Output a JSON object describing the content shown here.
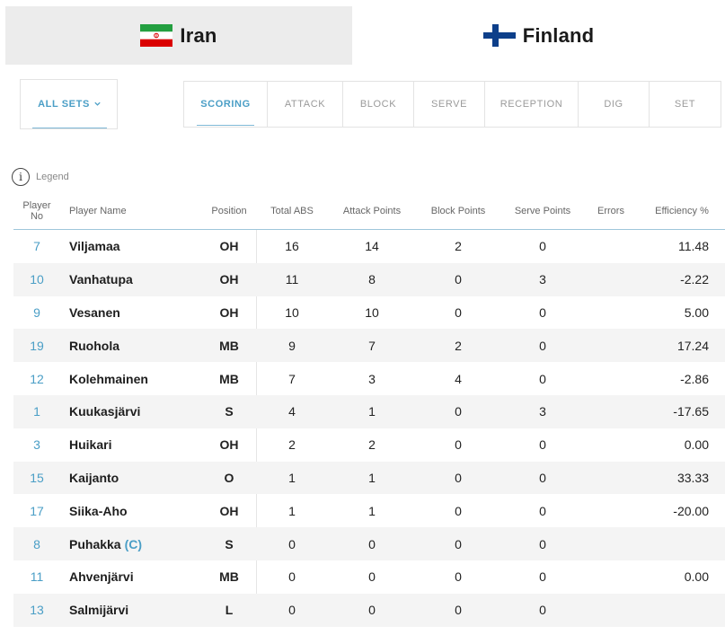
{
  "teams": [
    {
      "name": "Iran",
      "flag_icon": "iran-flag-icon",
      "active": false
    },
    {
      "name": "Finland",
      "flag_icon": "finland-flag-icon",
      "active": true
    }
  ],
  "set_selector": {
    "label": "ALL SETS",
    "icon": "chevron-down-icon"
  },
  "stat_tabs": [
    {
      "label": "SCORING",
      "active": true
    },
    {
      "label": "ATTACK",
      "active": false
    },
    {
      "label": "BLOCK",
      "active": false
    },
    {
      "label": "SERVE",
      "active": false
    },
    {
      "label": "RECEPTION",
      "active": false
    },
    {
      "label": "DIG",
      "active": false
    },
    {
      "label": "SET",
      "active": false
    }
  ],
  "legend": {
    "label": "Legend",
    "icon": "info-icon"
  },
  "table": {
    "headers": {
      "player_no_1": "Player",
      "player_no_2": "No",
      "player_name": "Player Name",
      "position": "Position",
      "total_abs": "Total ABS",
      "attack_points": "Attack Points",
      "block_points": "Block Points",
      "serve_points": "Serve Points",
      "errors": "Errors",
      "efficiency": "Efficiency %"
    },
    "rows": [
      {
        "no": "7",
        "name": "Viljamaa",
        "captain": "",
        "position": "OH",
        "total_abs": "16",
        "attack": "14",
        "block": "2",
        "serve": "0",
        "errors": "",
        "efficiency": "11.48"
      },
      {
        "no": "10",
        "name": "Vanhatupa",
        "captain": "",
        "position": "OH",
        "total_abs": "11",
        "attack": "8",
        "block": "0",
        "serve": "3",
        "errors": "",
        "efficiency": "-2.22"
      },
      {
        "no": "9",
        "name": "Vesanen",
        "captain": "",
        "position": "OH",
        "total_abs": "10",
        "attack": "10",
        "block": "0",
        "serve": "0",
        "errors": "",
        "efficiency": "5.00"
      },
      {
        "no": "19",
        "name": "Ruohola",
        "captain": "",
        "position": "MB",
        "total_abs": "9",
        "attack": "7",
        "block": "2",
        "serve": "0",
        "errors": "",
        "efficiency": "17.24"
      },
      {
        "no": "12",
        "name": "Kolehmainen",
        "captain": "",
        "position": "MB",
        "total_abs": "7",
        "attack": "3",
        "block": "4",
        "serve": "0",
        "errors": "",
        "efficiency": "-2.86"
      },
      {
        "no": "1",
        "name": "Kuukasjärvi",
        "captain": "",
        "position": "S",
        "total_abs": "4",
        "attack": "1",
        "block": "0",
        "serve": "3",
        "errors": "",
        "efficiency": "-17.65"
      },
      {
        "no": "3",
        "name": "Huikari",
        "captain": "",
        "position": "OH",
        "total_abs": "2",
        "attack": "2",
        "block": "0",
        "serve": "0",
        "errors": "",
        "efficiency": "0.00"
      },
      {
        "no": "15",
        "name": "Kaijanto",
        "captain": "",
        "position": "O",
        "total_abs": "1",
        "attack": "1",
        "block": "0",
        "serve": "0",
        "errors": "",
        "efficiency": "33.33"
      },
      {
        "no": "17",
        "name": "Siika-Aho",
        "captain": "",
        "position": "OH",
        "total_abs": "1",
        "attack": "1",
        "block": "0",
        "serve": "0",
        "errors": "",
        "efficiency": "-20.00"
      },
      {
        "no": "8",
        "name": "Puhakka",
        "captain": "(C)",
        "position": "S",
        "total_abs": "0",
        "attack": "0",
        "block": "0",
        "serve": "0",
        "errors": "",
        "efficiency": ""
      },
      {
        "no": "11",
        "name": "Ahvenjärvi",
        "captain": "",
        "position": "MB",
        "total_abs": "0",
        "attack": "0",
        "block": "0",
        "serve": "0",
        "errors": "",
        "efficiency": "0.00"
      },
      {
        "no": "13",
        "name": "Salmijärvi",
        "captain": "",
        "position": "L",
        "total_abs": "0",
        "attack": "0",
        "block": "0",
        "serve": "0",
        "errors": "",
        "efficiency": ""
      }
    ]
  },
  "colors": {
    "accent": "#4a9ec6",
    "inactive_tab_bg": "#ececec",
    "row_alt_bg": "#f4f4f4"
  }
}
